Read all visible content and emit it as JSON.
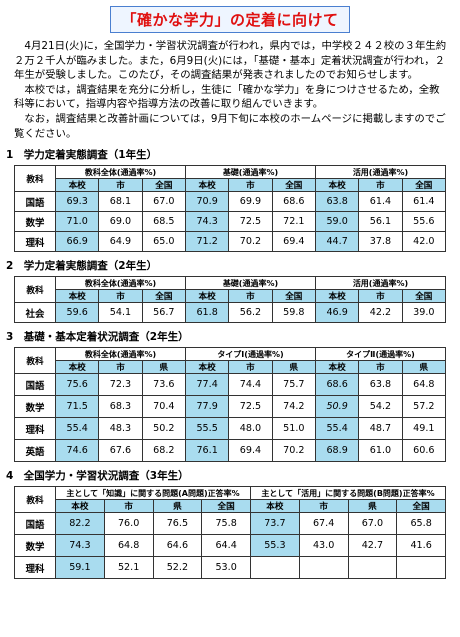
{
  "title": "「確かな学力」の定着に向けて",
  "paragraphs": [
    "4月21日(火)に，全国学力・学習状況調査が行われ，県内では，中学校２４２校の３年生約２万２千人が臨みました。また，6月9日(火)には，「基礎・基本」定着状況調査が行われ，２年生が受験しました。このたび，その調査結果が発表されましたのでお知らせします。",
    "本校では，調査結果を充分に分析し，生徒に「確かな学力」を身につけさせるため，全教科等において，指導内容や指導方法の改善に取り組んでいきます。",
    "なお，調査結果と改善計画については，9月下旬に本校のホームページに掲載しますのでご覧ください。"
  ],
  "sections": [
    {
      "heading": "1　学力定着実態調査（1年生）",
      "table": {
        "corner": "教科",
        "groups": [
          {
            "label": "教科全体(通過率%)",
            "cols": [
              "本校",
              "市",
              "全国"
            ]
          },
          {
            "label": "基礎(通過率%)",
            "cols": [
              "本校",
              "市",
              "全国"
            ]
          },
          {
            "label": "活用(通過率%)",
            "cols": [
              "本校",
              "市",
              "全国"
            ]
          }
        ],
        "rows": [
          {
            "subject": "国語",
            "cells": [
              "69.3",
              "68.1",
              "67.0",
              "70.9",
              "69.9",
              "68.6",
              "63.8",
              "61.4",
              "61.4"
            ]
          },
          {
            "subject": "数学",
            "cells": [
              "71.0",
              "69.0",
              "68.5",
              "74.3",
              "72.5",
              "72.1",
              "59.0",
              "56.1",
              "55.6"
            ]
          },
          {
            "subject": "理科",
            "cells": [
              "66.9",
              "64.9",
              "65.0",
              "71.2",
              "70.2",
              "69.4",
              "44.7",
              "37.8",
              "42.0"
            ]
          }
        ]
      }
    },
    {
      "heading": "2　学力定着実態調査（2年生）",
      "table": {
        "corner": "教科",
        "groups": [
          {
            "label": "教科全体(通過率%)",
            "cols": [
              "本校",
              "市",
              "全国"
            ]
          },
          {
            "label": "基礎(通過率%)",
            "cols": [
              "本校",
              "市",
              "全国"
            ]
          },
          {
            "label": "活用(通過率%)",
            "cols": [
              "本校",
              "市",
              "全国"
            ]
          }
        ],
        "rows": [
          {
            "subject": "社会",
            "cells": [
              "59.6",
              "54.1",
              "56.7",
              "61.8",
              "56.2",
              "59.8",
              "46.9",
              "42.2",
              "39.0"
            ]
          }
        ]
      }
    },
    {
      "heading": "3　基礎・基本定着状況調査（2年生）",
      "table": {
        "corner": "教科",
        "groups": [
          {
            "label": "教科全体(通過率%)",
            "cols": [
              "本校",
              "市",
              "県"
            ]
          },
          {
            "label": "タイプⅠ(通過率%)",
            "cols": [
              "本校",
              "市",
              "県"
            ]
          },
          {
            "label": "タイプⅡ(通過率%)",
            "cols": [
              "本校",
              "市",
              "県"
            ]
          }
        ],
        "rows": [
          {
            "subject": "国語",
            "cells": [
              "75.6",
              "72.3",
              "73.6",
              "77.4",
              "74.4",
              "75.7",
              "68.6",
              "63.8",
              "64.8"
            ]
          },
          {
            "subject": "数学",
            "cells": [
              "71.5",
              "68.3",
              "70.4",
              "77.9",
              "72.5",
              "74.2",
              "50.9",
              "54.2",
              "57.2"
            ]
          },
          {
            "subject": "理科",
            "cells": [
              "55.4",
              "48.3",
              "50.2",
              "55.5",
              "48.0",
              "51.0",
              "55.4",
              "48.7",
              "49.1"
            ]
          },
          {
            "subject": "英語",
            "cells": [
              "74.6",
              "67.6",
              "68.2",
              "76.1",
              "69.4",
              "70.2",
              "68.9",
              "61.0",
              "60.6"
            ]
          }
        ]
      }
    },
    {
      "heading": "4　全国学力・学習状況調査（3年生）",
      "table": {
        "corner": "教科",
        "groups": [
          {
            "label": "主として「知識」に関する問題(A問題)正答率%",
            "cols": [
              "本校",
              "市",
              "県",
              "全国"
            ]
          },
          {
            "label": "主として「活用」に関する問題(B問題)正答率%",
            "cols": [
              "本校",
              "市",
              "県",
              "全国"
            ]
          }
        ],
        "rows": [
          {
            "subject": "国語",
            "cells": [
              "82.2",
              "76.0",
              "76.5",
              "75.8",
              "73.7",
              "67.4",
              "67.0",
              "65.8"
            ]
          },
          {
            "subject": "数学",
            "cells": [
              "74.3",
              "64.8",
              "64.6",
              "64.4",
              "55.3",
              "43.0",
              "42.7",
              "41.6"
            ]
          },
          {
            "subject": "理科",
            "cells": [
              "59.1",
              "52.1",
              "52.2",
              "53.0"
            ]
          }
        ]
      }
    }
  ]
}
